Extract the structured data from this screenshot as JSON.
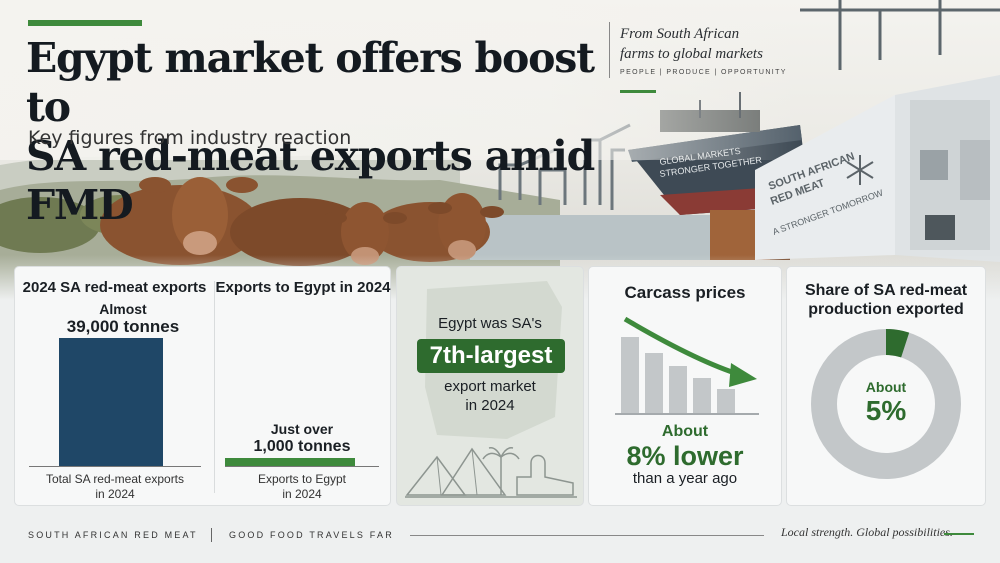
{
  "headline": {
    "line1": "Egypt market offers boost to",
    "line2": "SA red-meat exports amid FMD",
    "subhead": "Key figures from industry reaction"
  },
  "tagline": {
    "line1": "From South African",
    "line2": "farms to global markets",
    "words": "PEOPLE  |  PRODUCE  |  OPPORTUNITY"
  },
  "scene": {
    "ship_text1": "GLOBAL MARKETS",
    "ship_text2": "STRONGER TOGETHER",
    "container_text1": "SOUTH AFRICAN",
    "container_text2": "RED MEAT",
    "container_text3": "A STRONGER TOMORROW"
  },
  "card1": {
    "title": "2024 SA red-meat exports",
    "value_prefix": "Almost",
    "value": "39,000 tonnes",
    "caption_line1": "Total SA red-meat exports",
    "caption_line2": "in 2024"
  },
  "card2": {
    "title": "Exports to Egypt in 2024",
    "value_prefix": "Just over",
    "value": "1,000 tonnes",
    "caption_line1": "Exports to Egypt",
    "caption_line2": "in 2024"
  },
  "chart_data": {
    "type": "bar",
    "categories": [
      "2024 SA red-meat exports",
      "Exports to Egypt in 2024"
    ],
    "values": [
      39000,
      1000
    ],
    "ylabel": "tonnes"
  },
  "card3": {
    "line1": "Egypt was SA's",
    "badge": "7th-largest",
    "line2": "export market",
    "line3": "in 2024"
  },
  "card4": {
    "title": "Carcass prices",
    "prefix": "About",
    "value": "8% lower",
    "suffix": "than a year ago"
  },
  "card5": {
    "title_line1": "Share of SA red-meat",
    "title_line2": "production exported",
    "prefix": "About",
    "value": "5%",
    "share_percent": 5
  },
  "footer": {
    "left": "SOUTH AFRICAN RED MEAT",
    "mid": "GOOD FOOD TRAVELS FAR",
    "right": "Local strength. Global possibilities."
  },
  "colors": {
    "navy": "#1f4767",
    "green": "#3e8a3c",
    "dark_green": "#2e6b2e",
    "gray": "#c3c7c9"
  }
}
